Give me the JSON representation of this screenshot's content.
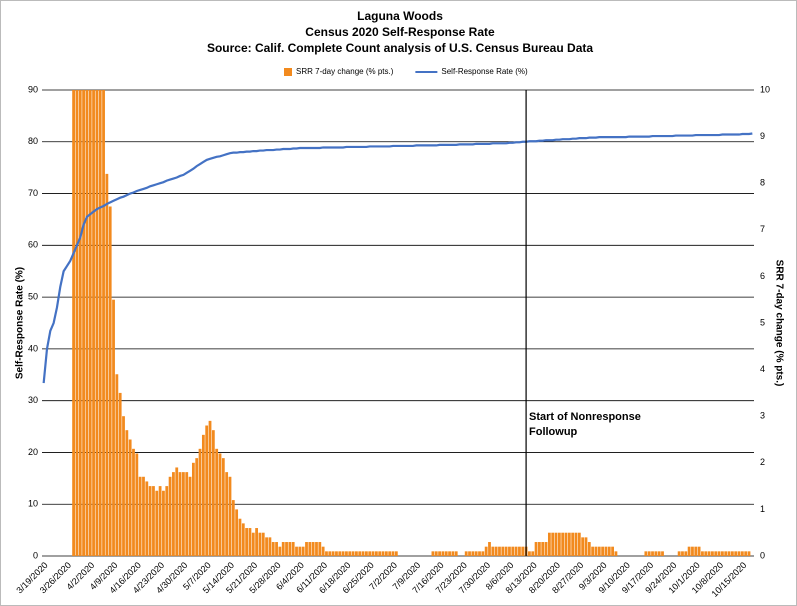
{
  "chart_data": {
    "type": "bar-line",
    "title": [
      "Laguna Woods",
      "Census 2020 Self-Response Rate",
      "Source: Calif. Complete Count analysis of U.S. Census Bureau Data"
    ],
    "ylabel": "Self-Response Rate (%)",
    "y2label": "SRR 7-day change (% pts.)",
    "annotation": [
      "Start of Nonresponse",
      "Followup"
    ],
    "categories": [
      "3/19/2020",
      null,
      null,
      null,
      null,
      null,
      null,
      "3/26/2020",
      null,
      null,
      null,
      null,
      null,
      null,
      "4/2/2020",
      null,
      null,
      null,
      null,
      null,
      null,
      "4/9/2020",
      null,
      null,
      null,
      null,
      null,
      null,
      "4/16/2020",
      null,
      null,
      null,
      null,
      null,
      null,
      "4/23/2020",
      null,
      null,
      null,
      null,
      null,
      null,
      "4/30/2020",
      null,
      null,
      null,
      null,
      null,
      null,
      "5/7/2020",
      null,
      null,
      null,
      null,
      null,
      null,
      "5/14/2020",
      null,
      null,
      null,
      null,
      null,
      null,
      "5/21/2020",
      null,
      null,
      null,
      null,
      null,
      null,
      "5/28/2020",
      null,
      null,
      null,
      null,
      null,
      null,
      "6/4/2020",
      null,
      null,
      null,
      null,
      null,
      null,
      "6/11/2020",
      null,
      null,
      null,
      null,
      null,
      null,
      "6/18/2020",
      null,
      null,
      null,
      null,
      null,
      null,
      "6/25/2020",
      null,
      null,
      null,
      null,
      null,
      null,
      "7/2/2020",
      null,
      null,
      null,
      null,
      null,
      null,
      "7/9/2020",
      null,
      null,
      null,
      null,
      null,
      null,
      "7/16/2020",
      null,
      null,
      null,
      null,
      null,
      null,
      "7/23/2020",
      null,
      null,
      null,
      null,
      null,
      null,
      "7/30/2020",
      null,
      null,
      null,
      null,
      null,
      null,
      "8/6/2020",
      null,
      null,
      null,
      null,
      null,
      null,
      "8/13/2020",
      null,
      null,
      null,
      null,
      null,
      null,
      "8/20/2020",
      null,
      null,
      null,
      null,
      null,
      null,
      "8/27/2020",
      null,
      null,
      null,
      null,
      null,
      null,
      "9/3/2020",
      null,
      null,
      null,
      null,
      null,
      null,
      "9/10/2020",
      null,
      null,
      null,
      null,
      null,
      null,
      "9/17/2020",
      null,
      null,
      null,
      null,
      null,
      null,
      "9/24/2020",
      null,
      null,
      null,
      null,
      null,
      null,
      "10/1/2020",
      null,
      null,
      null,
      null,
      null,
      null,
      "10/8/2020",
      null,
      null,
      null,
      null,
      null,
      null,
      "10/15/2020",
      null,
      null,
      null
    ],
    "series": [
      {
        "name": "SRR 7-day change (% pts.)",
        "type": "bar",
        "axis": "y2",
        "color": "#f28a1e",
        "values": [
          null,
          null,
          null,
          null,
          null,
          null,
          null,
          null,
          null,
          10,
          10,
          10,
          10,
          10,
          10,
          10,
          10,
          10,
          10,
          8.2,
          7.5,
          5.5,
          3.9,
          3.5,
          3.0,
          2.7,
          2.5,
          2.3,
          2.2,
          1.7,
          1.7,
          1.6,
          1.5,
          1.5,
          1.4,
          1.5,
          1.4,
          1.5,
          1.7,
          1.8,
          1.9,
          1.8,
          1.8,
          1.8,
          1.7,
          2.0,
          2.1,
          2.3,
          2.6,
          2.8,
          2.9,
          2.7,
          2.3,
          2.2,
          2.1,
          1.8,
          1.7,
          1.2,
          1.0,
          0.8,
          0.7,
          0.6,
          0.6,
          0.5,
          0.6,
          0.5,
          0.5,
          0.4,
          0.4,
          0.3,
          0.3,
          0.2,
          0.3,
          0.3,
          0.3,
          0.3,
          0.2,
          0.2,
          0.2,
          0.3,
          0.3,
          0.3,
          0.3,
          0.3,
          0.2,
          0.1,
          0.1,
          0.1,
          0.1,
          0.1,
          0.1,
          0.1,
          0.1,
          0.1,
          0.1,
          0.1,
          0.1,
          0.1,
          0.1,
          0.1,
          0.1,
          0.1,
          0.1,
          0.1,
          0.1,
          0.1,
          0.1,
          0,
          0,
          0,
          0,
          0,
          0,
          0,
          0,
          0,
          0,
          0.1,
          0.1,
          0.1,
          0.1,
          0.1,
          0.1,
          0.1,
          0.1,
          0,
          0,
          0.1,
          0.1,
          0.1,
          0.1,
          0.1,
          0.1,
          0.2,
          0.3,
          0.2,
          0.2,
          0.2,
          0.2,
          0.2,
          0.2,
          0.2,
          0.2,
          0.2,
          0.2,
          0.2,
          0.1,
          0.1,
          0.3,
          0.3,
          0.3,
          0.3,
          0.5,
          0.5,
          0.5,
          0.5,
          0.5,
          0.5,
          0.5,
          0.5,
          0.5,
          0.5,
          0.4,
          0.4,
          0.3,
          0.2,
          0.2,
          0.2,
          0.2,
          0.2,
          0.2,
          0.2,
          0.1,
          0,
          0,
          0,
          0,
          0,
          0,
          0,
          0,
          0.1,
          0.1,
          0.1,
          0.1,
          0.1,
          0.1,
          0,
          0,
          0,
          0,
          0.1,
          0.1,
          0.1,
          0.2,
          0.2,
          0.2,
          0.2,
          0.1,
          0.1,
          0.1,
          0.1,
          0.1,
          0.1,
          0.1,
          0.1,
          0.1,
          0.1,
          0.1,
          0.1,
          0.1,
          0.1,
          0.1,
          null
        ]
      },
      {
        "name": "Self-Response Rate (%)",
        "type": "line",
        "axis": "y",
        "color": "#4472c4",
        "values": [
          33.4,
          40,
          43.5,
          45,
          48,
          52,
          55,
          56,
          57,
          58.5,
          60,
          61.5,
          64,
          65.5,
          66,
          66.5,
          67,
          67.3,
          67.6,
          68,
          68.3,
          68.6,
          68.9,
          69.2,
          69.4,
          69.7,
          70.0,
          70.2,
          70.5,
          70.7,
          70.9,
          71.1,
          71.4,
          71.6,
          71.8,
          72.0,
          72.2,
          72.5,
          72.7,
          72.9,
          73.1,
          73.4,
          73.6,
          74.0,
          74.4,
          74.8,
          75.3,
          75.7,
          76.1,
          76.5,
          76.7,
          76.9,
          77.1,
          77.2,
          77.4,
          77.6,
          77.8,
          77.9,
          77.9,
          78.0,
          78.0,
          78.1,
          78.1,
          78.2,
          78.2,
          78.3,
          78.3,
          78.4,
          78.4,
          78.4,
          78.5,
          78.5,
          78.6,
          78.6,
          78.6,
          78.7,
          78.7,
          78.8,
          78.8,
          78.8,
          78.8,
          78.8,
          78.8,
          78.8,
          78.9,
          78.9,
          78.9,
          78.9,
          78.9,
          78.9,
          78.9,
          79.0,
          79.0,
          79.0,
          79.0,
          79.0,
          79.0,
          79.0,
          79.1,
          79.1,
          79.1,
          79.1,
          79.1,
          79.1,
          79.1,
          79.2,
          79.2,
          79.2,
          79.2,
          79.2,
          79.2,
          79.2,
          79.3,
          79.3,
          79.3,
          79.3,
          79.3,
          79.3,
          79.3,
          79.4,
          79.4,
          79.4,
          79.4,
          79.4,
          79.4,
          79.5,
          79.5,
          79.5,
          79.5,
          79.5,
          79.6,
          79.6,
          79.6,
          79.6,
          79.6,
          79.7,
          79.7,
          79.7,
          79.7,
          79.7,
          79.8,
          79.8,
          79.9,
          79.9,
          80.0,
          80.0,
          80.1,
          80.1,
          80.1,
          80.2,
          80.2,
          80.3,
          80.3,
          80.3,
          80.4,
          80.4,
          80.5,
          80.5,
          80.5,
          80.6,
          80.6,
          80.7,
          80.7,
          80.7,
          80.8,
          80.8,
          80.8,
          80.9,
          80.9,
          80.9,
          80.9,
          80.9,
          80.9,
          80.9,
          80.9,
          80.9,
          81.0,
          81.0,
          81.0,
          81.0,
          81.0,
          81.0,
          81.0,
          81.1,
          81.1,
          81.1,
          81.1,
          81.1,
          81.1,
          81.1,
          81.2,
          81.2,
          81.2,
          81.2,
          81.2,
          81.2,
          81.3,
          81.3,
          81.3,
          81.3,
          81.3,
          81.3,
          81.3,
          81.3,
          81.4,
          81.4,
          81.4,
          81.4,
          81.4,
          81.4,
          81.5,
          81.5,
          81.5,
          81.6
        ]
      }
    ],
    "ylim": [
      0,
      90
    ],
    "yticks": [
      0,
      10,
      20,
      30,
      40,
      50,
      60,
      70,
      80,
      90
    ],
    "y2lim": [
      0,
      10
    ],
    "y2ticks": [
      0,
      1,
      2,
      3,
      4,
      5,
      6,
      7,
      8,
      9,
      10
    ],
    "grid": true
  }
}
